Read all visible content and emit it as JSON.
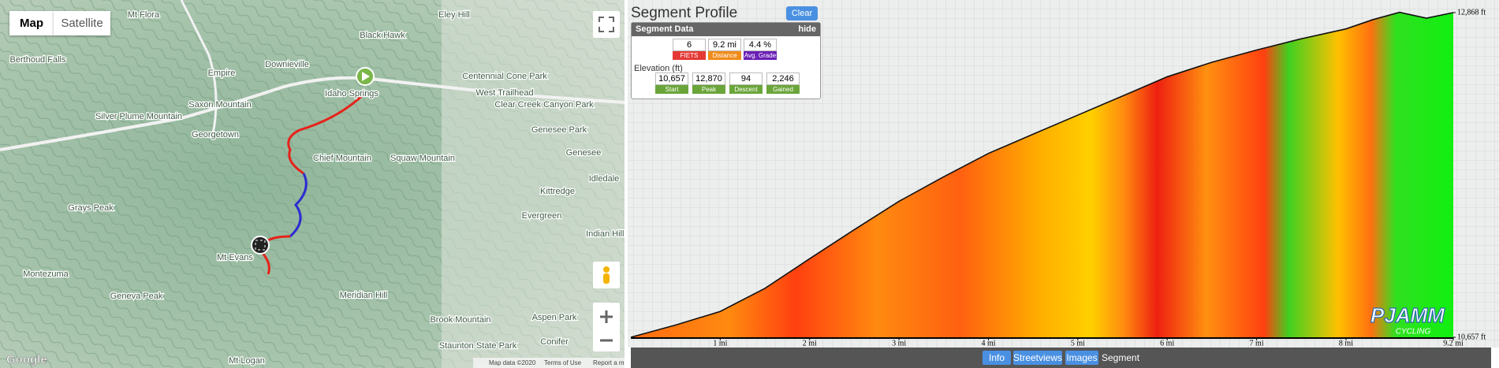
{
  "map": {
    "buttons": [
      "Map",
      "Satellite"
    ],
    "labels": [
      "Mt Flora",
      "Eley Hill",
      "Black Hawk",
      "Berthoud Falls",
      "Empire",
      "Downieville",
      "Idaho Springs",
      "Centennial Cone Park",
      "West Trailhead",
      "Clear Creek Canyon Park",
      "Saxon Mountain",
      "Silver Plume Mountain",
      "Georgetown",
      "Genesee Park",
      "Chief Mountain",
      "Squaw Mountain",
      "Genesee",
      "Idledale",
      "Kittredge",
      "Evergreen",
      "Grays Peak",
      "Mt Evans",
      "Indian Hills",
      "Montezuma",
      "Geneva Peak",
      "Meridian Hill",
      "Brook Mountain",
      "Aspen Park",
      "Conifer",
      "Staunton State Park",
      "Mt Logan"
    ],
    "attribution": [
      "Map data ©2020",
      "Terms of Use",
      "Report a map error"
    ],
    "brand": "Google"
  },
  "panel": {
    "title": "Segment Profile",
    "clear": "Clear",
    "box": {
      "title": "Segment Data",
      "hide": "hide",
      "stats": [
        {
          "value": "6",
          "label": "FIETS"
        },
        {
          "value": "9.2 mi",
          "label": "Distance"
        },
        {
          "value": "4.4 %",
          "label": "Avg. Grade"
        }
      ],
      "elevation_title": "Elevation (ft)",
      "elevation": [
        {
          "value": "10,657",
          "label": "Start"
        },
        {
          "value": "12,870",
          "label": "Peak"
        },
        {
          "value": "94",
          "label": "Descent"
        },
        {
          "value": "2,246",
          "label": "Gained"
        }
      ]
    },
    "tabs": [
      "Info",
      "Streetviews",
      "Images",
      "Segment"
    ],
    "logo": "PJAMM",
    "logo_sub": "CYCLING"
  },
  "profile": {
    "xlim": [
      0,
      9.2
    ],
    "ylim": [
      10657,
      12868
    ],
    "xticks": [
      {
        "value": 1,
        "label": "1 mi"
      },
      {
        "value": 2,
        "label": "2 mi"
      },
      {
        "value": 3,
        "label": "3 mi"
      },
      {
        "value": 4,
        "label": "4 mi"
      },
      {
        "value": 5,
        "label": "5 mi"
      },
      {
        "value": 6,
        "label": "6 mi"
      },
      {
        "value": 7,
        "label": "7 mi"
      },
      {
        "value": 8,
        "label": "8 mi"
      },
      {
        "value": 9.2,
        "label": "9.2 mi"
      }
    ],
    "yticks": [
      {
        "value": 12868,
        "label": "12,868 ft"
      },
      {
        "value": 10657,
        "label": "10,657 ft"
      }
    ],
    "x": [
      0,
      0.5,
      1,
      1.5,
      2,
      2.5,
      3,
      3.5,
      4,
      4.5,
      5,
      5.5,
      6,
      6.5,
      7,
      7.5,
      8,
      8.3,
      8.6,
      8.9,
      9.2
    ],
    "elevation": [
      10657,
      10740,
      10833,
      10990,
      11192,
      11390,
      11583,
      11750,
      11909,
      12040,
      12170,
      12300,
      12431,
      12530,
      12613,
      12690,
      12757,
      12820,
      12870,
      12830,
      12868
    ]
  }
}
